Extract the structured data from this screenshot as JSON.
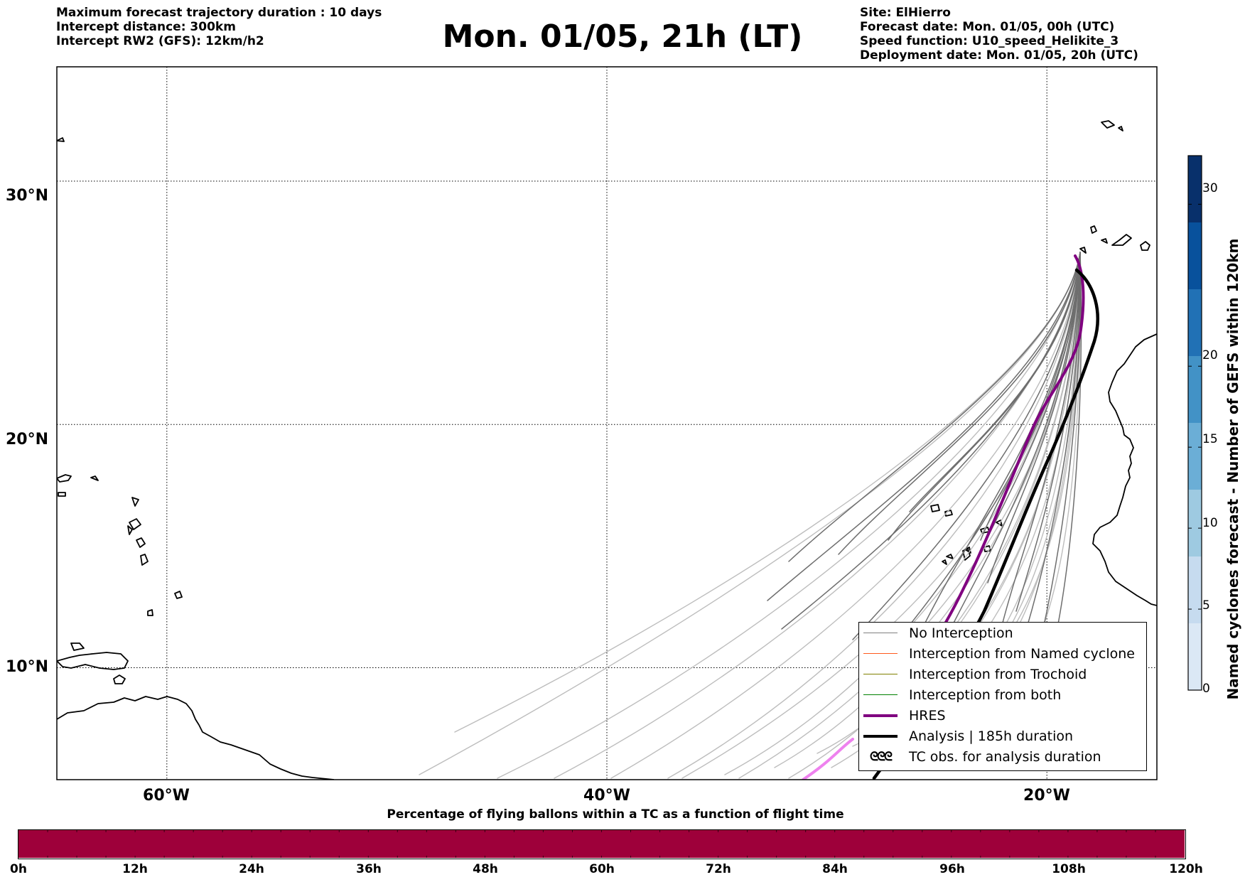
{
  "header": {
    "left_lines": [
      "Maximum forecast trajectory duration : 10 days",
      "Intercept distance: 300km",
      "Intercept RW2 (GFS):  12km/h2"
    ],
    "title": "Mon. 01/05, 21h (LT)",
    "right_lines": [
      "Site: ElHierro",
      "Forecast date: Mon. 01/05, 00h (UTC)",
      "Speed function: U10_speed_Helikite_3",
      "Deployment date: Mon. 01/05, 20h (UTC)"
    ]
  },
  "map": {
    "lat_labels": [
      "30°N",
      "20°N",
      "10°N"
    ],
    "lon_labels": [
      "60°W",
      "40°W",
      "20°W"
    ],
    "lat_values": [
      30,
      20,
      10
    ],
    "lon_values": [
      -60,
      -40,
      -20
    ],
    "extent": {
      "lon_min": -65,
      "lon_max": -15,
      "lat_min": 5.4,
      "lat_max": 34.7
    }
  },
  "legend": {
    "items": [
      {
        "label": "No Interception",
        "color": "#808080",
        "kind": "thin"
      },
      {
        "label": "Interception from Named cyclone",
        "color": "#ff5a1e",
        "kind": "thin"
      },
      {
        "label": "Interception from Trochoid",
        "color": "#808000",
        "kind": "thin"
      },
      {
        "label": "Interception from both",
        "color": "#008000",
        "kind": "thin"
      },
      {
        "label": "HRES",
        "color": "#800080",
        "kind": "thick"
      },
      {
        "label": "Analysis | 185h duration",
        "color": "#000000",
        "kind": "thick"
      },
      {
        "label": "TC obs. for analysis duration",
        "color": "#000000",
        "kind": "symbol",
        "symbol": "ᘓᘓᘓ"
      }
    ]
  },
  "colorbar": {
    "title": "Named cyclones forecast - Number of GEFS within 120km",
    "ticks": [
      "0",
      "5",
      "10",
      "15",
      "20",
      "30"
    ],
    "tick_values": [
      0,
      5,
      10,
      15,
      20,
      30
    ],
    "max": 33,
    "colors": [
      "#dbe8f5",
      "#c6dbef",
      "#9ecae1",
      "#6baed6",
      "#4292c6",
      "#2171b5",
      "#08519c",
      "#08306b"
    ]
  },
  "bottom_bar": {
    "title": "Percentage of flying ballons within a TC as a function of flight time",
    "ticks": [
      "0h",
      "12h",
      "24h",
      "36h",
      "48h",
      "60h",
      "72h",
      "84h",
      "96h",
      "108h",
      "120h"
    ],
    "fill_color": "#9e003a",
    "segments": 40
  }
}
